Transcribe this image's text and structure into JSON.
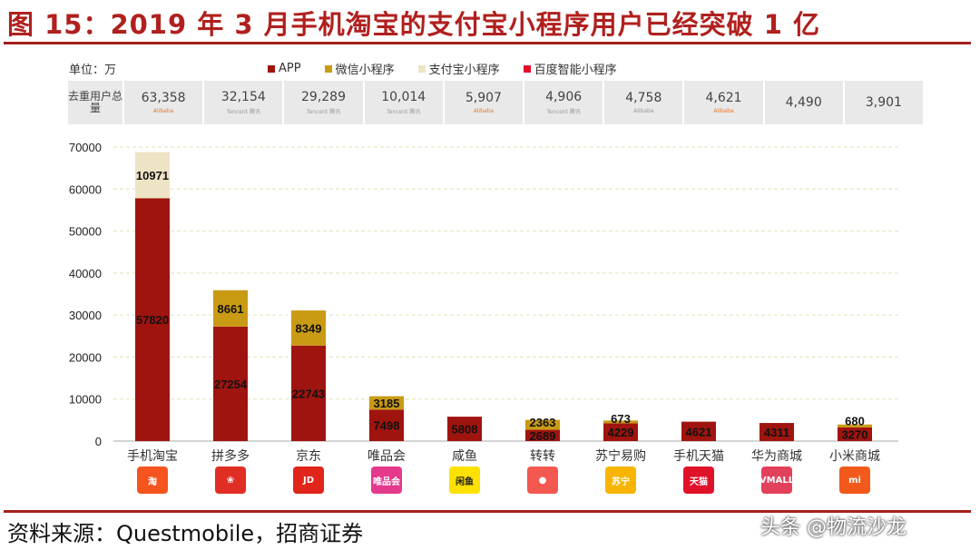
{
  "title": "图 15：2019 年 3 月手机淘宝的支付宝小程序用户已经突破 1 亿",
  "source": "资料来源：Questmobile，招商证券",
  "watermark": "头条 @物流沙龙",
  "unit": "单位：万",
  "totals_header": "去重用户总量",
  "totals": [
    {
      "value": "63,358",
      "logo": "Alibaba",
      "logo_style": "ali"
    },
    {
      "value": "32,154",
      "logo": "Tencent 腾讯",
      "logo_style": "tencent"
    },
    {
      "value": "29,289",
      "logo": "Tencent 腾讯",
      "logo_style": "tencent"
    },
    {
      "value": "10,014",
      "logo": "Tencent 腾讯",
      "logo_style": "tencent"
    },
    {
      "value": "5,907",
      "logo": "Alibaba",
      "logo_style": "ali"
    },
    {
      "value": "4,906",
      "logo": "Tencent 腾讯",
      "logo_style": "tencent"
    },
    {
      "value": "4,758",
      "logo": "Alibaba",
      "logo_style": "tencent"
    },
    {
      "value": "4,621",
      "logo": "Alibaba",
      "logo_style": "ali"
    },
    {
      "value": "4,490",
      "logo": "",
      "logo_style": ""
    },
    {
      "value": "3,901",
      "logo": "",
      "logo_style": ""
    }
  ],
  "app_logos": [
    {
      "icon": "taobao-icon",
      "text": "淘",
      "color": "#f5541e"
    },
    {
      "icon": "pinduoduo-icon",
      "text": "❀",
      "color": "#e02e24"
    },
    {
      "icon": "jd-icon",
      "text": "JD",
      "color": "#e1251b"
    },
    {
      "icon": "vipshop-icon",
      "text": "唯品会",
      "color": "#e4398d"
    },
    {
      "icon": "xianyu-icon",
      "text": "闲鱼",
      "color": "#ffe100"
    },
    {
      "icon": "zhuanzhuan-icon",
      "text": "●",
      "color": "#f2584f"
    },
    {
      "icon": "suning-icon",
      "text": "苏宁",
      "color": "#f7b500"
    },
    {
      "icon": "tmall-icon",
      "text": "天猫",
      "color": "#e0122a"
    },
    {
      "icon": "huawei-mall-icon",
      "text": "VMALL",
      "color": "#e2405b"
    },
    {
      "icon": "xiaomi-icon",
      "text": "mi",
      "color": "#f25a1c"
    }
  ],
  "chart_data": {
    "type": "bar",
    "stacked": true,
    "title": "",
    "xlabel": "",
    "ylabel": "",
    "ylim": [
      0,
      70000
    ],
    "yticks": [
      0,
      10000,
      20000,
      30000,
      40000,
      50000,
      60000,
      70000
    ],
    "grid": true,
    "legend_position": "top",
    "categories": [
      "手机淘宝",
      "拼多多",
      "京东",
      "唯品会",
      "咸鱼",
      "转转",
      "苏宁易购",
      "手机天猫",
      "华为商城",
      "小米商城"
    ],
    "series": [
      {
        "name": "APP",
        "color": "#a0140f",
        "values": [
          57820,
          27254,
          22743,
          7498,
          5808,
          2689,
          4229,
          4621,
          4311,
          3270
        ]
      },
      {
        "name": "微信小程序",
        "color": "#c99a14",
        "values": [
          0,
          8661,
          8349,
          3185,
          0,
          2363,
          673,
          0,
          0,
          680
        ]
      },
      {
        "name": "支付宝小程序",
        "color": "#eee3c5",
        "values": [
          10971,
          0,
          0,
          0,
          0,
          0,
          0,
          0,
          0,
          0
        ]
      },
      {
        "name": "百度智能小程序",
        "color": "#e3102a",
        "values": [
          0,
          0,
          0,
          0,
          0,
          0,
          0,
          0,
          0,
          0
        ]
      }
    ]
  }
}
